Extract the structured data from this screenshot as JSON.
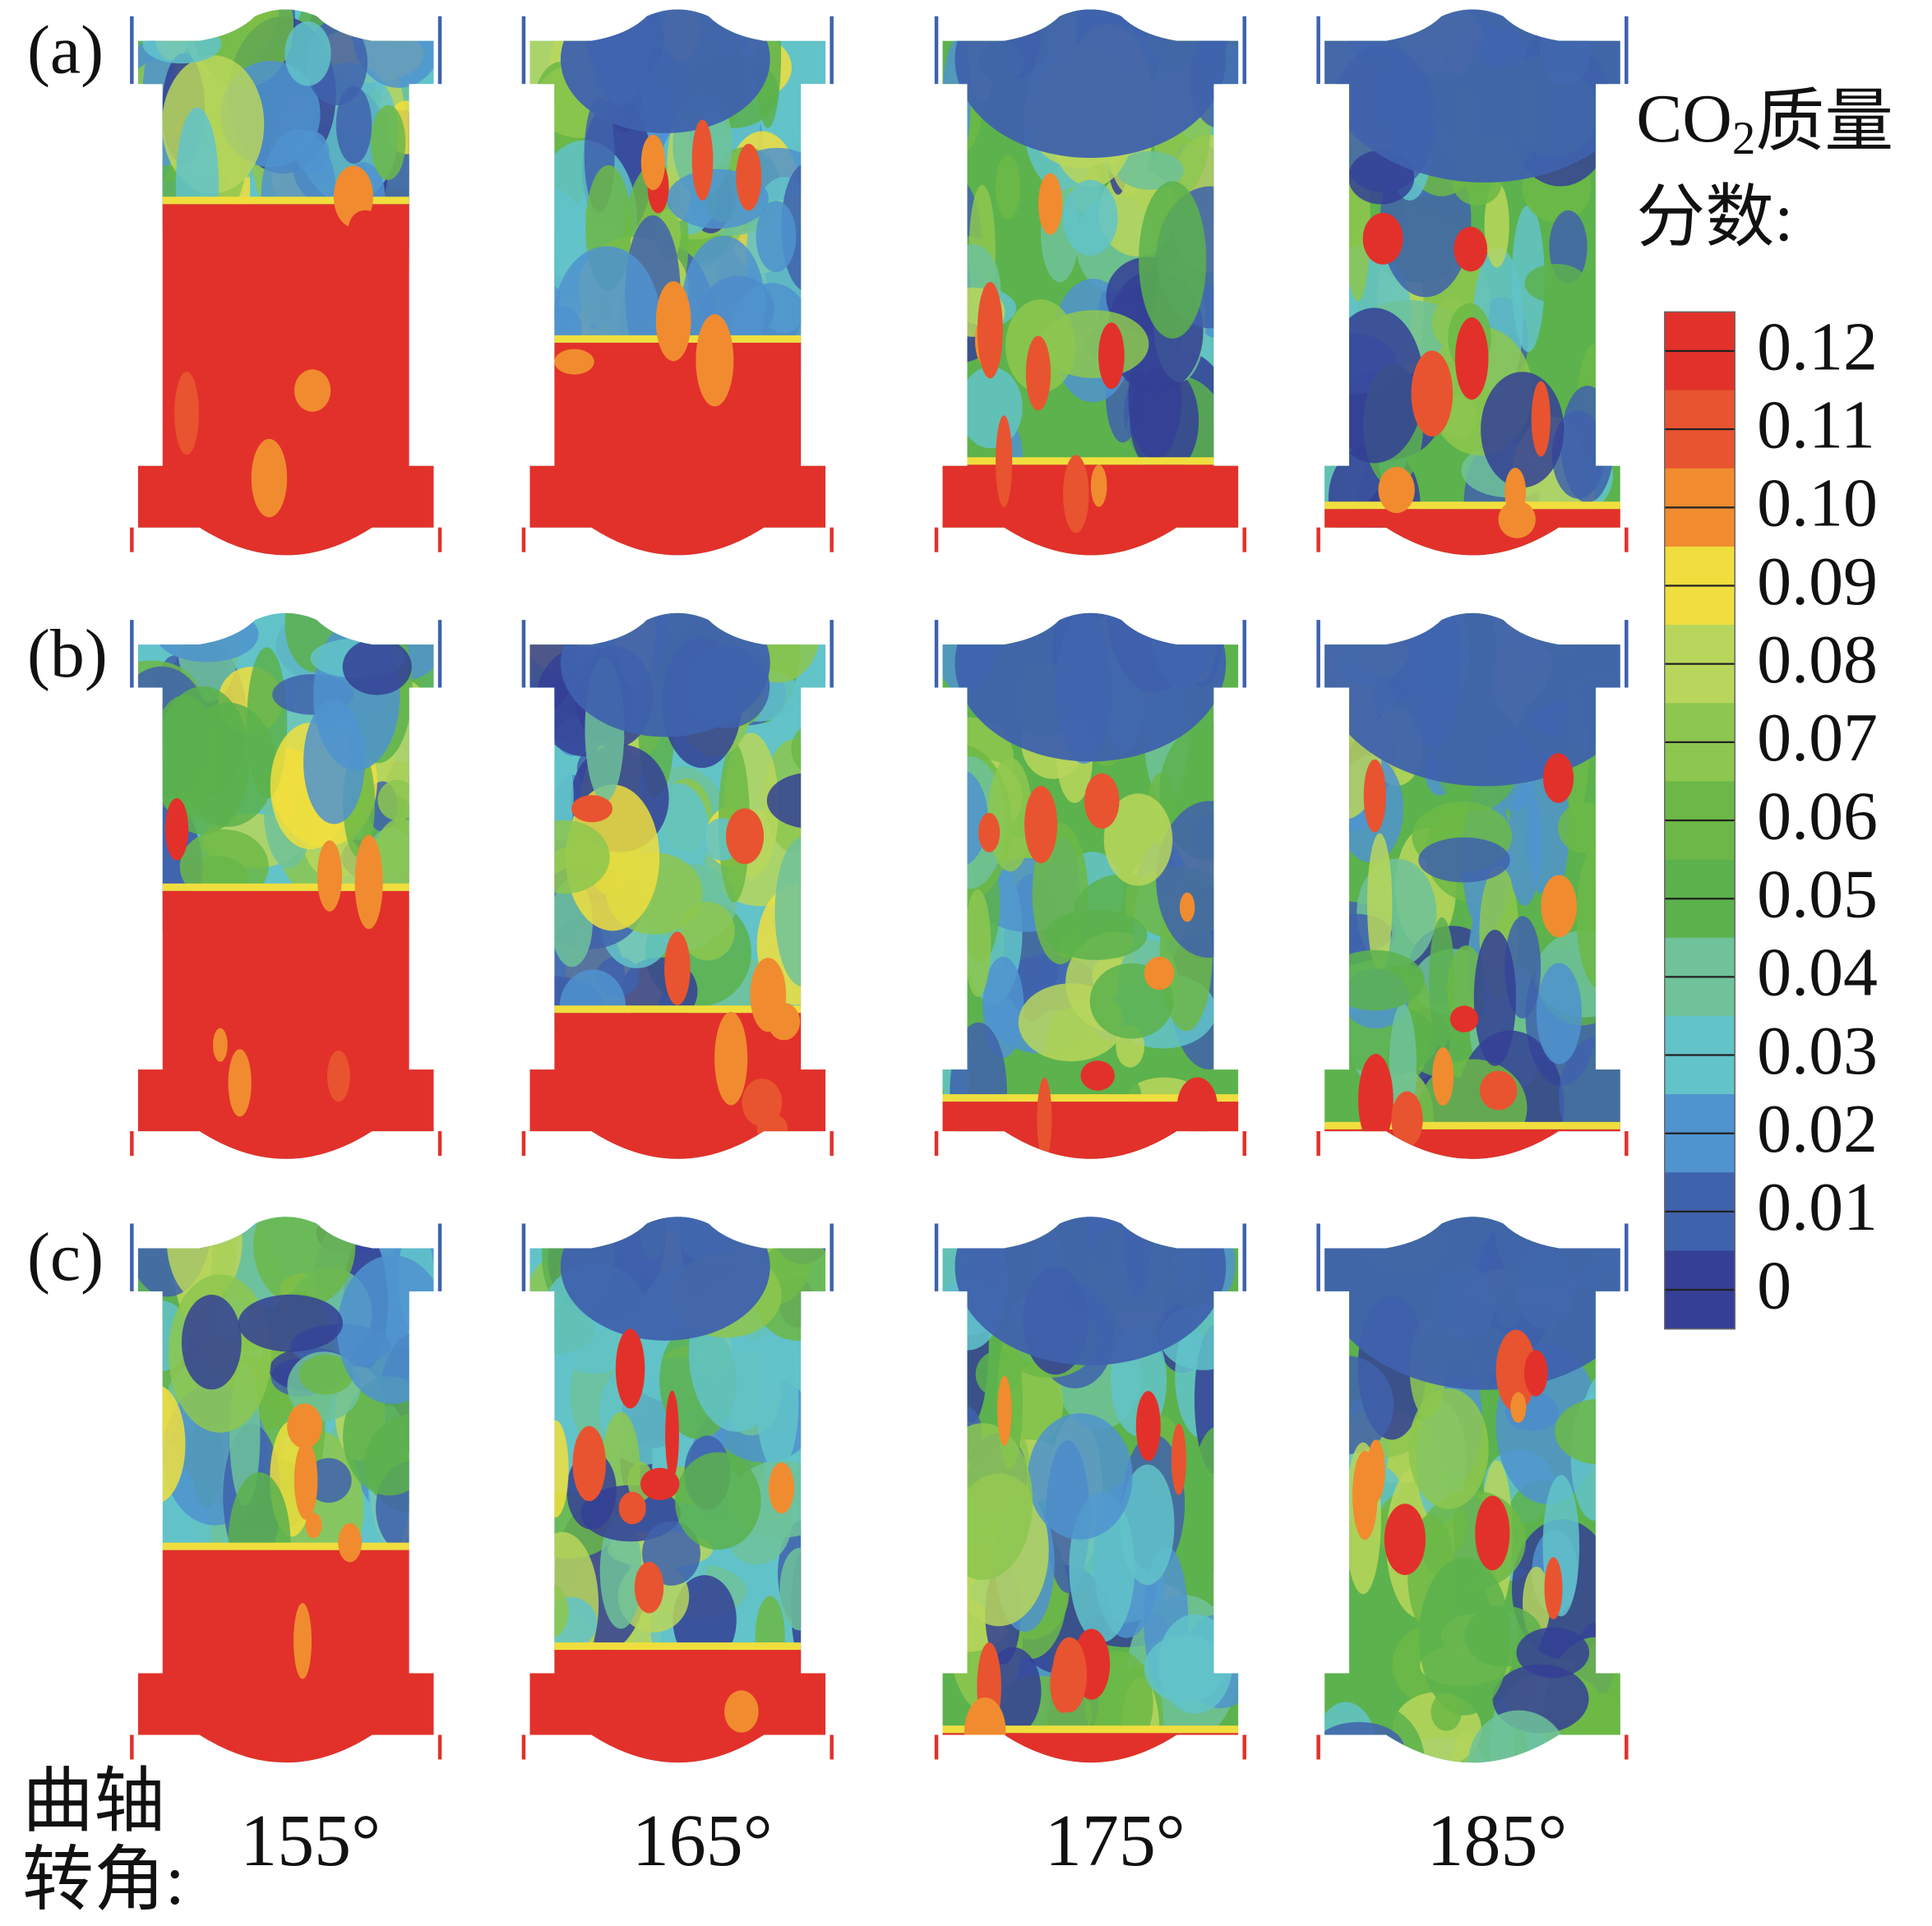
{
  "row_labels": [
    "(a)",
    "(b)",
    "(c)"
  ],
  "column_labels": [
    "155°",
    "165°",
    "175°",
    "185°"
  ],
  "x_caption": {
    "line1": "曲轴",
    "line2": "转角:"
  },
  "colorbar": {
    "title": {
      "prefix": "CO",
      "subscript": "2",
      "suffix": "质量",
      "line2": "分数:"
    },
    "labels": [
      "0.12",
      "0.11",
      "0.10",
      "0.09",
      "0.08",
      "0.07",
      "0.06",
      "0.05",
      "0.04",
      "0.03",
      "0.02",
      "0.01",
      "0"
    ],
    "colors": [
      "#e2312a",
      "#e8542f",
      "#f08c2f",
      "#f0de3e",
      "#b9d65c",
      "#8dc74f",
      "#6cb846",
      "#5cb24c",
      "#6fc29a",
      "#62c3c9",
      "#4f93cf",
      "#3f62ad",
      "#343f95"
    ]
  }
}
